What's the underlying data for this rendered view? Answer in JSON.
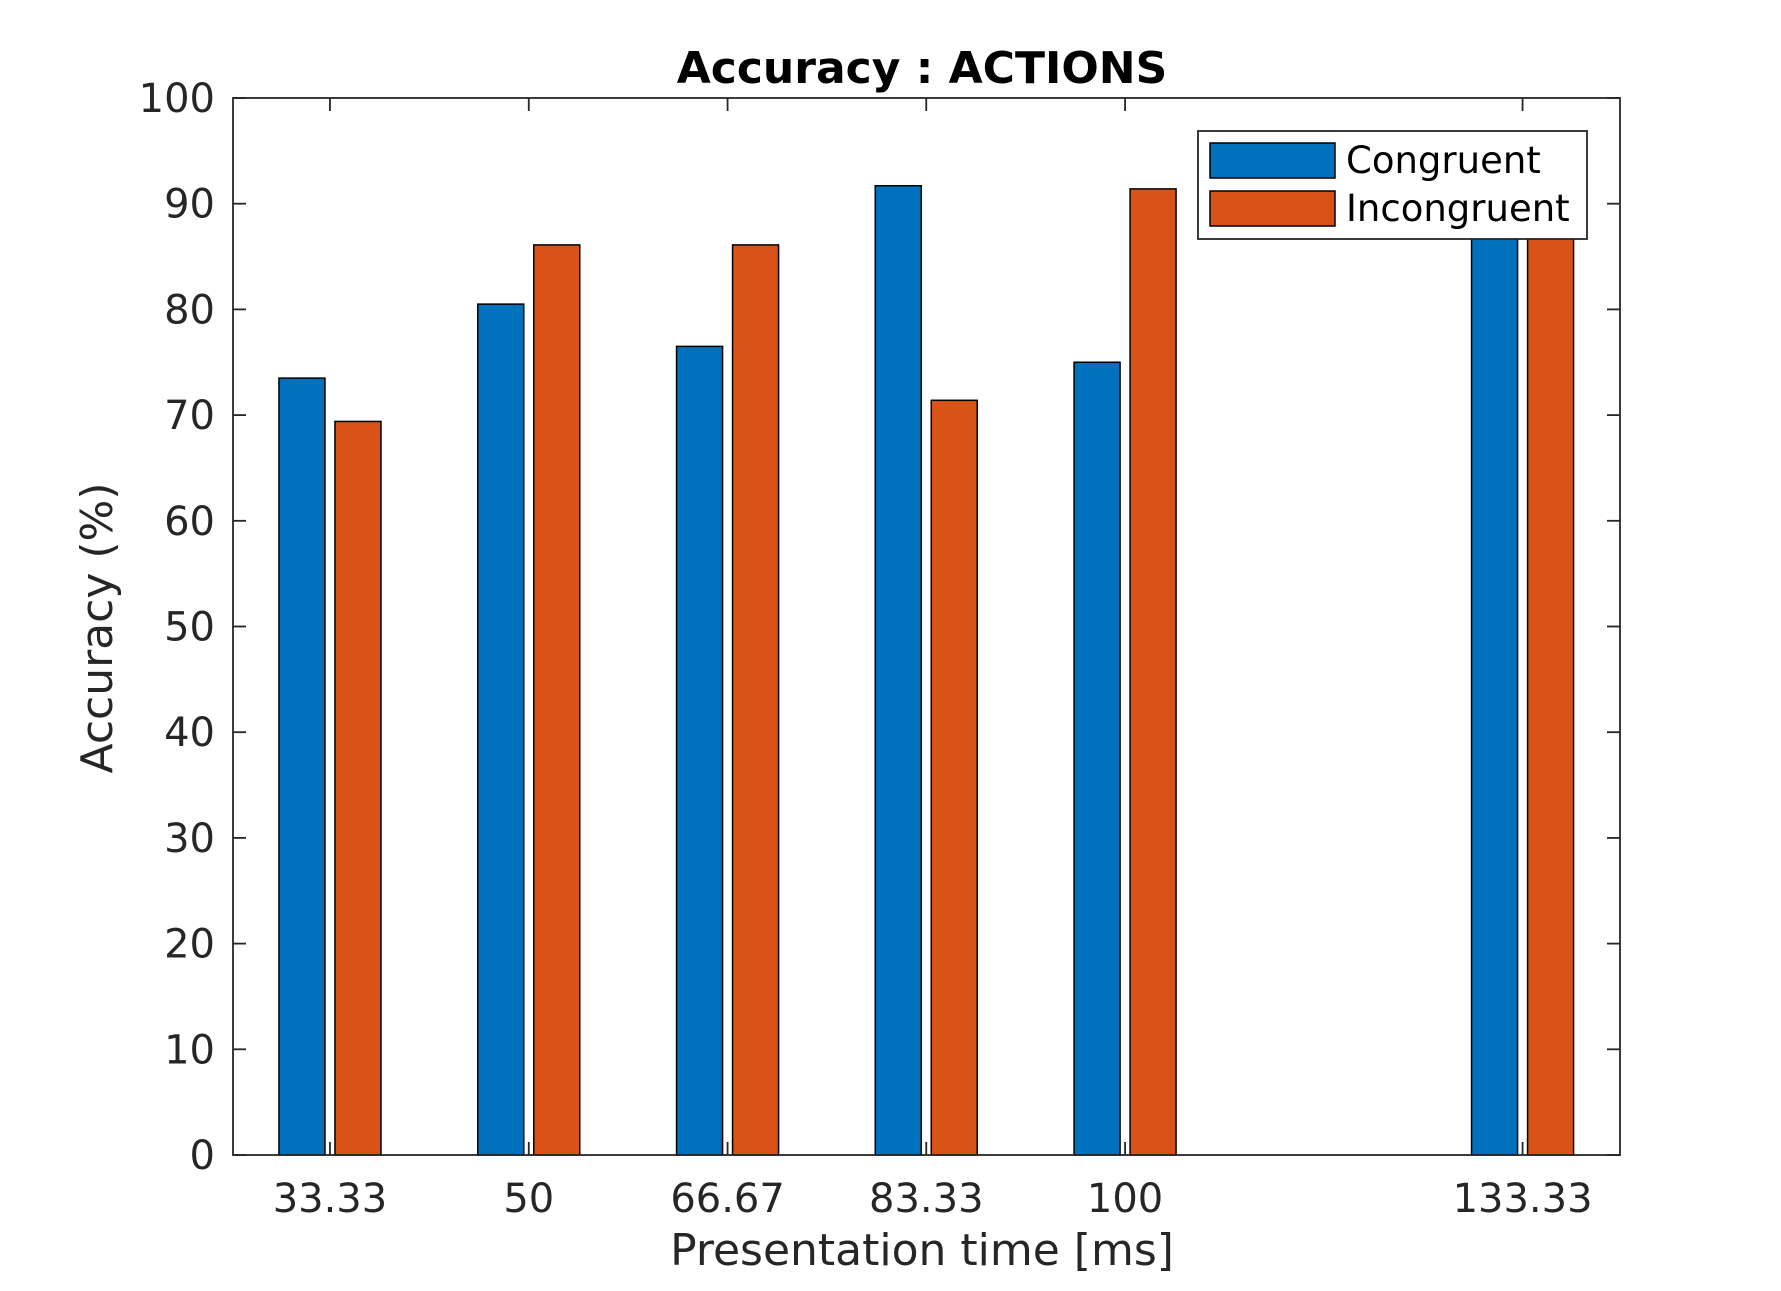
{
  "chart_data": {
    "type": "bar",
    "title": "Accuracy : ACTIONS",
    "xlabel": "Presentation time [ms]",
    "ylabel": "Accuracy (%)",
    "categories": [
      "33.33",
      "50",
      "66.67",
      "83.33",
      "100",
      "133.33"
    ],
    "x": [
      33.33,
      50,
      66.67,
      83.33,
      100,
      133.33
    ],
    "xlim": [
      25.2,
      141.5
    ],
    "ylim": [
      0,
      100
    ],
    "yticks": [
      0,
      10,
      20,
      30,
      40,
      50,
      60,
      70,
      80,
      90,
      100
    ],
    "grid": false,
    "legend_position": "top-right",
    "series": [
      {
        "name": "Congruent",
        "color": "#0072BD",
        "values": [
          73.5,
          80.5,
          76.5,
          91.7,
          75.0,
          91.0
        ]
      },
      {
        "name": "Incongruent",
        "color": "#D95319",
        "values": [
          69.4,
          86.1,
          86.1,
          71.4,
          91.4,
          90.0
        ]
      }
    ]
  }
}
